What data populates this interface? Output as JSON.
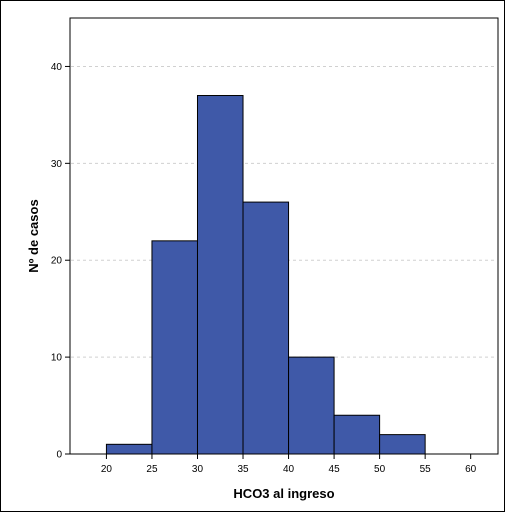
{
  "chart_data": {
    "type": "bar",
    "title": "",
    "xlabel": "HCO3 al ingreso",
    "ylabel": "Nº de casos",
    "bins": [
      {
        "start": 20,
        "end": 25,
        "value": 1
      },
      {
        "start": 25,
        "end": 30,
        "value": 22
      },
      {
        "start": 30,
        "end": 35,
        "value": 37
      },
      {
        "start": 35,
        "end": 40,
        "value": 26
      },
      {
        "start": 40,
        "end": 45,
        "value": 10
      },
      {
        "start": 45,
        "end": 50,
        "value": 4
      },
      {
        "start": 50,
        "end": 55,
        "value": 2
      }
    ],
    "xticks": [
      "20",
      "25",
      "30",
      "35",
      "40",
      "45",
      "50",
      "55",
      "60"
    ],
    "yticks": [
      "0",
      "10",
      "20",
      "30",
      "40"
    ],
    "xlim": [
      16,
      63
    ],
    "ylim": [
      0,
      45
    ],
    "grid": "horizontal-dashed",
    "bar_color": "#3f59a8",
    "bar_edge_color": "#000000",
    "grid_color": "#d0d0d0"
  }
}
